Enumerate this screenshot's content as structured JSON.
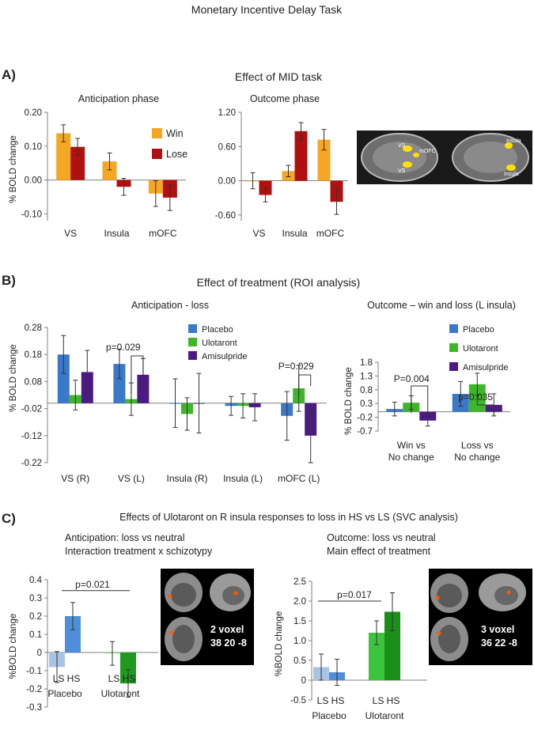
{
  "page_title": "Monetary Incentive Delay Task",
  "sections": {
    "a_label": "A)",
    "a_title": "Effect of MID task",
    "b_label": "B)",
    "b_title": "Effect of treatment (ROI analysis)",
    "c_label": "C)",
    "c_title": "Effects of Ulotaront on R insula responses to loss in HS vs LS (SVC analysis)"
  },
  "colors": {
    "win": "#f5a623",
    "lose": "#b01010",
    "placebo": "#3a78c9",
    "ulotaront": "#3fb62a",
    "amisulpride": "#4b1a85",
    "placebo_ls": "#a9c3e6",
    "placebo_hs": "#4f8ed8",
    "ulo_ls_a": "#8fd27d",
    "ulo_hs_a": "#1f9a1f",
    "ulo_ls_b": "#3cc43c",
    "ulo_hs_b": "#1a8f1a"
  },
  "brain_labels": {
    "vs1": "VS",
    "mofc": "mOFC",
    "vs2": "VS",
    "insula": "Insula",
    "insula2": "Insula",
    "voxel_a": "2 voxel",
    "coords_a": "38 20 -8",
    "voxel_b": "3 voxel",
    "coords_b": "36 22 -8"
  },
  "chart_data": [
    {
      "id": "a1",
      "type": "bar",
      "title": "Anticipation phase",
      "ylabel": "% BOLD change",
      "ylim": [
        -0.12,
        0.2
      ],
      "yticks": [
        0.2,
        0.1,
        0.0,
        -0.1
      ],
      "ytick_labels": [
        "0.20",
        "0.10",
        "0.00",
        "-0.10"
      ],
      "categories": [
        "VS",
        "Insula",
        "mOFC"
      ],
      "series": [
        {
          "name": "Win",
          "color": "#f5a623",
          "values": [
            0.138,
            0.055,
            -0.04
          ],
          "errors": [
            0.025,
            0.025,
            0.038
          ]
        },
        {
          "name": "Lose",
          "color": "#b01010",
          "values": [
            0.098,
            -0.02,
            -0.052
          ],
          "errors": [
            0.025,
            0.025,
            0.038
          ]
        }
      ],
      "legend": [
        "Win",
        "Lose"
      ]
    },
    {
      "id": "a2",
      "type": "bar",
      "title": "Outcome phase",
      "ylabel": "",
      "ylim": [
        -0.7,
        1.2
      ],
      "yticks": [
        1.2,
        0.6,
        0.0,
        -0.6
      ],
      "ytick_labels": [
        "1.20",
        "0.60",
        "0.00",
        "-0.60"
      ],
      "categories": [
        "VS",
        "Insula",
        "mOFC"
      ],
      "series": [
        {
          "name": "Win",
          "color": "#f5a623",
          "values": [
            0.0,
            0.17,
            0.72
          ],
          "errors": [
            0.14,
            0.1,
            0.18
          ]
        },
        {
          "name": "Lose",
          "color": "#b01010",
          "values": [
            -0.25,
            0.87,
            -0.37
          ],
          "errors": [
            0.12,
            0.15,
            0.22
          ]
        }
      ]
    },
    {
      "id": "b1",
      "type": "bar",
      "title": "Anticipation - loss",
      "ylabel": "% BOLD change",
      "ylim": [
        -0.22,
        0.28
      ],
      "yticks": [
        0.28,
        0.18,
        0.08,
        -0.02,
        -0.12,
        -0.22
      ],
      "ytick_labels": [
        "0.28",
        "0.18",
        "0.08",
        "-0.02",
        "-0.12",
        "-0.22"
      ],
      "categories": [
        "VS (R)",
        "VS (L)",
        "Insula (R)",
        "Insula (L)",
        "mOFC (L)"
      ],
      "series": [
        {
          "name": "Placebo",
          "color": "#3a78c9",
          "values": [
            0.18,
            0.145,
            0.0,
            -0.01,
            -0.047
          ],
          "errors": [
            0.07,
            0.055,
            0.09,
            0.035,
            0.09
          ]
        },
        {
          "name": "Ulotaront",
          "color": "#3fb62a",
          "values": [
            0.03,
            0.015,
            -0.04,
            -0.01,
            0.055
          ],
          "errors": [
            0.055,
            0.06,
            0.06,
            0.045,
            0.085
          ]
        },
        {
          "name": "Amisulpride",
          "color": "#4b1a85",
          "values": [
            0.115,
            0.105,
            0.0,
            -0.015,
            -0.12
          ],
          "errors": [
            0.08,
            0.06,
            0.11,
            0.05,
            0.1
          ]
        }
      ],
      "legend": [
        "Placebo",
        "Ulotaront",
        "Amisulpride"
      ],
      "annotations": [
        {
          "text": "p=0.029",
          "category": "VS (L)"
        },
        {
          "text": "P=0.029",
          "category": "mOFC (L)"
        }
      ]
    },
    {
      "id": "b2",
      "type": "bar",
      "title": "Outcome – win and loss (L insula)",
      "ylabel": "% BOLD change",
      "ylim": [
        -0.7,
        1.8
      ],
      "yticks": [
        1.8,
        1.3,
        0.8,
        0.3,
        -0.2,
        -0.7
      ],
      "ytick_labels": [
        "1.8",
        "1.3",
        "0.8",
        "0.3",
        "-0.2",
        "-0.7"
      ],
      "categories": [
        "Win vs No change",
        "Loss vs No change"
      ],
      "category_lines": [
        [
          "Win vs",
          "No change"
        ],
        [
          "Loss vs",
          "No change"
        ]
      ],
      "series": [
        {
          "name": "Placebo",
          "color": "#3a78c9",
          "values": [
            0.1,
            0.65
          ],
          "errors": [
            0.25,
            0.45
          ]
        },
        {
          "name": "Ulotaront",
          "color": "#3fb62a",
          "values": [
            0.33,
            1.0
          ],
          "errors": [
            0.25,
            0.4
          ]
        },
        {
          "name": "Amisulpride",
          "color": "#4b1a85",
          "values": [
            -0.32,
            0.25
          ],
          "errors": [
            0.2,
            0.4
          ]
        }
      ],
      "legend": [
        "Placebo",
        "Ulotaront",
        "Amisulpride"
      ],
      "annotations": [
        {
          "text": "P=0.004",
          "category": "Win vs No change"
        },
        {
          "text": "p=0.035",
          "category": "Loss vs No change"
        }
      ]
    },
    {
      "id": "c1",
      "type": "bar",
      "title": "Anticipation: loss vs neutral",
      "subtitle": "Interaction treatment x schizotypy",
      "ylabel": "%BOLD change",
      "ylim": [
        -0.3,
        0.4
      ],
      "yticks": [
        0.4,
        0.3,
        0.2,
        0.1,
        0,
        -0.1,
        -0.2,
        -0.3
      ],
      "ytick_labels": [
        "0.4",
        "0.3",
        "0.2",
        "0.1",
        "0",
        "-0.1",
        "-0.2",
        "-0.3"
      ],
      "groups": [
        "Placebo",
        "Ulotaront"
      ],
      "bar_labels": [
        "LS",
        "HS",
        "LS",
        "HS"
      ],
      "values": [
        -0.08,
        0.2,
        -0.005,
        -0.17
      ],
      "errors": [
        0.085,
        0.075,
        0.065,
        0.075
      ],
      "annotations": [
        {
          "text": "p=0.021"
        }
      ]
    },
    {
      "id": "c2",
      "type": "bar",
      "title": "Outcome: loss vs neutral",
      "subtitle": "Main effect of treatment",
      "ylabel": "%BOLD change",
      "ylim": [
        -0.5,
        2.5
      ],
      "yticks": [
        2.5,
        2,
        1.5,
        1,
        0.5,
        0,
        -0.5
      ],
      "ytick_labels": [
        "2.5",
        "2.0",
        "1.5",
        "1.0",
        "0.5",
        "0",
        "-0.5"
      ],
      "groups": [
        "Placebo",
        "Ulotaront"
      ],
      "bar_labels": [
        "LS",
        "HS",
        "LS",
        "HS"
      ],
      "values": [
        0.33,
        0.2,
        1.2,
        1.73
      ],
      "errors": [
        0.33,
        0.33,
        0.3,
        0.48
      ],
      "annotations": [
        {
          "text": "p=0.017"
        }
      ]
    }
  ]
}
